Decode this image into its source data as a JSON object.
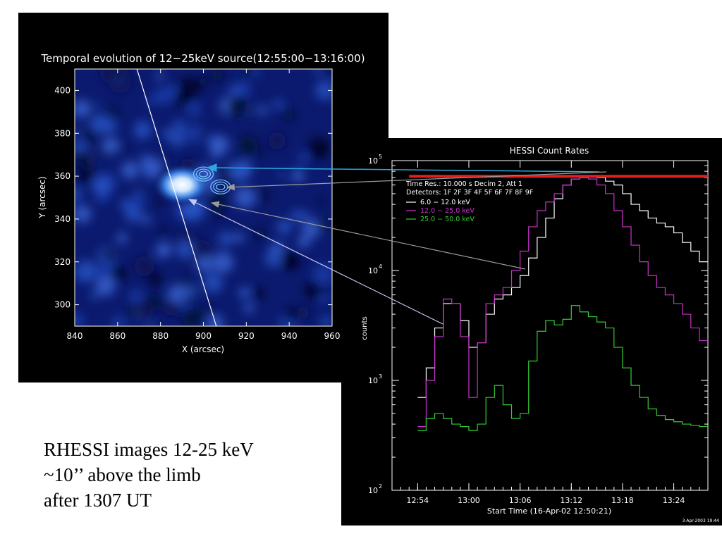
{
  "caption": {
    "lines": [
      "RHESSI images 12-25 keV",
      "~10’’ above the limb",
      "after 1307 UT"
    ]
  },
  "colors": {
    "image_background": "#0b1a6e",
    "contour": "#7ec8ff",
    "channel_low": "#ffffff",
    "channel_mid": "#cc33cc",
    "channel_high": "#33cc33",
    "attenuator_bar": "#e0201e",
    "pointer_cyan": "#29a8e0",
    "pointer_grey": "#9a9a9a",
    "pointer_lavender": "#c8c8f0"
  },
  "chart_data": [
    {
      "type": "heatmap",
      "title": "Temporal evolution of 12−25keV source(12:55:00−13:16:00)",
      "xlabel": "X (arcsec)",
      "ylabel": "Y (arcsec)",
      "xlim": [
        840,
        960
      ],
      "ylim": [
        290,
        410
      ],
      "xticks": [
        "840",
        "860",
        "880",
        "900",
        "920",
        "940",
        "960"
      ],
      "yticks": [
        "300",
        "320",
        "340",
        "360",
        "380",
        "400"
      ],
      "bright_source": {
        "x": 890,
        "y": 356
      },
      "contour_centers": [
        {
          "x": 900,
          "y": 361
        },
        {
          "x": 908,
          "y": 355
        }
      ],
      "limb_line": [
        {
          "x": 869,
          "y": 410
        },
        {
          "x": 906,
          "y": 290
        }
      ]
    },
    {
      "type": "line",
      "title": "HESSI Count Rates",
      "xlabel": "Start Time (16-Apr-02 12:50:21)",
      "ylabel": "counts",
      "yscale": "log",
      "ylim": [
        100,
        100000
      ],
      "xlim": [
        "12:51",
        "13:28"
      ],
      "xticks": [
        "12:54",
        "13:00",
        "13:06",
        "13:12",
        "13:18",
        "13:24"
      ],
      "yticks": [
        {
          "base": "10",
          "exp": "2",
          "value": 100
        },
        {
          "base": "10",
          "exp": "3",
          "value": 1000
        },
        {
          "base": "10",
          "exp": "4",
          "value": 10000
        },
        {
          "base": "10",
          "exp": "5",
          "value": 100000
        }
      ],
      "info_lines": [
        "Time Res.: 10.000 s    Decim 2, Att 1",
        "Detectors: 1F 2F 3F 4F 5F 6F 7F 8F 9F"
      ],
      "legend_position": "top-left",
      "footer": "3-Apr-2003 19:44",
      "attenuator_bar": {
        "x_start": "12:53",
        "x_end": "13:28",
        "y": 72000
      },
      "series": [
        {
          "name": "6.0   −   12.0 keV",
          "x": [
            "12:54",
            "12:55",
            "12:56",
            "12:57",
            "12:58",
            "12:59",
            "13:00",
            "13:01",
            "13:02",
            "13:03",
            "13:04",
            "13:05",
            "13:06",
            "13:07",
            "13:08",
            "13:09",
            "13:10",
            "13:11",
            "13:12",
            "13:13",
            "13:14",
            "13:15",
            "13:16",
            "13:17",
            "13:18",
            "13:19",
            "13:20",
            "13:21",
            "13:22",
            "13:23",
            "13:24",
            "13:25",
            "13:26",
            "13:27"
          ],
          "values": [
            700,
            1300,
            3000,
            5000,
            5000,
            3500,
            2000,
            2200,
            4000,
            5500,
            6000,
            7000,
            9000,
            13000,
            20000,
            30000,
            45000,
            60000,
            68000,
            70000,
            72000,
            70000,
            65000,
            60000,
            50000,
            40000,
            35000,
            30000,
            27000,
            25000,
            22000,
            18000,
            15000,
            12000
          ]
        },
        {
          "name": "12.0   −   25.0 keV",
          "x": [
            "12:54",
            "12:55",
            "12:56",
            "12:57",
            "12:58",
            "12:59",
            "13:00",
            "13:01",
            "13:02",
            "13:03",
            "13:04",
            "13:05",
            "13:06",
            "13:07",
            "13:08",
            "13:09",
            "13:10",
            "13:11",
            "13:12",
            "13:13",
            "13:14",
            "13:15",
            "13:16",
            "13:17",
            "13:18",
            "13:19",
            "13:20",
            "13:21",
            "13:22",
            "13:23",
            "13:24",
            "13:25",
            "13:26",
            "13:27"
          ],
          "values": [
            380,
            1000,
            2500,
            5500,
            5000,
            2500,
            700,
            2200,
            5000,
            6000,
            7000,
            10000,
            15000,
            25000,
            35000,
            42000,
            50000,
            60000,
            68000,
            70000,
            68000,
            60000,
            50000,
            35000,
            25000,
            17000,
            12000,
            9000,
            7000,
            6000,
            5000,
            4000,
            3000,
            2300
          ]
        },
        {
          "name": "25.0   −   50.0 keV",
          "x": [
            "12:54",
            "12:55",
            "12:56",
            "12:57",
            "12:58",
            "12:59",
            "13:00",
            "13:01",
            "13:02",
            "13:03",
            "13:04",
            "13:05",
            "13:06",
            "13:07",
            "13:08",
            "13:09",
            "13:10",
            "13:11",
            "13:12",
            "13:13",
            "13:14",
            "13:15",
            "13:16",
            "13:17",
            "13:18",
            "13:19",
            "13:20",
            "13:21",
            "13:22",
            "13:23",
            "13:24",
            "13:25",
            "13:26",
            "13:27"
          ],
          "values": [
            350,
            450,
            500,
            450,
            400,
            380,
            350,
            400,
            700,
            900,
            600,
            450,
            500,
            1500,
            2800,
            3500,
            3200,
            3600,
            4800,
            4200,
            3800,
            3400,
            3000,
            2000,
            1300,
            900,
            700,
            550,
            480,
            440,
            420,
            400,
            390,
            380
          ]
        }
      ]
    }
  ]
}
